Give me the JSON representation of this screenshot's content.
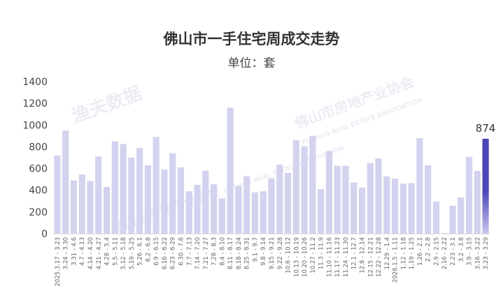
{
  "chart_data": {
    "type": "bar",
    "title": "佛山市一手住宅周成交走势",
    "subtitle": "单位：套",
    "xlabel": "",
    "ylabel": "",
    "ylim": [
      0,
      1400
    ],
    "yticks": [
      0,
      200,
      400,
      600,
      800,
      1000,
      1200,
      1400
    ],
    "grid": false,
    "categories": [
      "2025.3.17 - 3.23",
      "3.24 - 3.30",
      "3.31 - 4.6",
      "4.7 - 4.13",
      "4.14 - 4.20",
      "4.21 - 4.27",
      "4.28 - 5.4",
      "5.5 - 5.11",
      "5.12 - 5.18",
      "5.19 - 5.25",
      "5.26 - 6.1",
      "6.2 - 6.8",
      "6.9 - 6.15",
      "6.16 - 6.22",
      "6.23 - 6.29",
      "6.30 - 7.6",
      "7.7 - 7.13",
      "7.14 - 7.20",
      "7.21 - 7.27",
      "7.28 - 8.3",
      "8.4 - 8.10",
      "8.11 - 8.17",
      "8.18 - 8.24",
      "8.25 - 8.31",
      "9.1 - 9.7",
      "9.8 - 9.14",
      "9.15 - 9.21",
      "9.22 - 9.28",
      "10.6 - 10.12",
      "10.13 - 10.19",
      "10.20 - 10.26",
      "10.27 - 11.2",
      "11.3 - 11.9",
      "11.10 - 11.16",
      "11.17 - 11.23",
      "11.24 - 11.30",
      "12.1 - 12.7",
      "12.8 - 12.14",
      "12.15 - 12.21",
      "12.22 - 12.28",
      "12.29 - 1.4",
      "2026.1.5 - 1.11",
      "1.12 - 1.18",
      "1.19 - 1.25",
      "1.26 - 2.1",
      "2.2 - 2.8",
      "2.9 - 2.15",
      "2.16 - 2.22",
      "2.23 - 3.1",
      "3.2 - 3.8",
      "3.9 - 3.15",
      "3.16 - 3.22",
      "3.23 - 3.29"
    ],
    "values": [
      720,
      950,
      490,
      545,
      485,
      710,
      430,
      850,
      825,
      700,
      790,
      630,
      890,
      590,
      740,
      610,
      390,
      450,
      580,
      455,
      325,
      1160,
      440,
      530,
      380,
      390,
      510,
      635,
      560,
      860,
      805,
      900,
      410,
      760,
      625,
      625,
      470,
      424,
      650,
      694,
      526,
      507,
      462,
      465,
      880,
      630,
      295,
      5,
      257,
      334,
      707,
      578,
      874
    ],
    "data_labels": [
      {
        "category": "3.23 - 3.29",
        "text": "874"
      }
    ],
    "colors": {
      "bar": "#d3d3ef",
      "highlight_top": "#4b45b8",
      "highlight_bottom": "#c9c8ee"
    }
  },
  "watermarks": [
    "佛山市房地产业协会",
    "FOSHAN REAL ESTATE ASSOCIATION",
    "渔夫数据"
  ]
}
